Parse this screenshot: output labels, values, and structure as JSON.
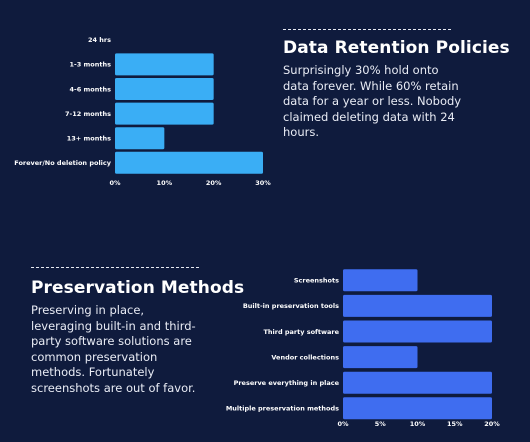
{
  "section1": {
    "heading": "Data Retention Policies",
    "body": "Surprisingly 30% hold onto data forever. While 60% retain data for a year or less. Nobody claimed deleting data with 24 hours."
  },
  "section2": {
    "heading": "Preservation Methods",
    "body": "Preserving in place, leveraging built-in and third-party software solutions are common preservation methods. Fortunately screenshots are out of favor."
  },
  "chart_data": [
    {
      "type": "bar",
      "orientation": "horizontal",
      "categories": [
        "24 hrs",
        "1-3 months",
        "4-6 months",
        "7-12 months",
        "13+ months",
        "Forever/No deletion policy"
      ],
      "values": [
        0,
        20,
        20,
        20,
        10,
        30
      ],
      "xlim": [
        0,
        30
      ],
      "xticks": [
        "0%",
        "10%",
        "20%",
        "30%"
      ],
      "tick_values": [
        0,
        10,
        20,
        30
      ],
      "color": "#3aaef5",
      "grid": false
    },
    {
      "type": "bar",
      "orientation": "horizontal",
      "categories": [
        "Screenshots",
        "Built-in preservation tools",
        "Third party software",
        "Vendor collections",
        "Preserve everything in place",
        "Multiple preservation methods"
      ],
      "values": [
        10,
        20,
        20,
        10,
        20,
        20
      ],
      "xlim": [
        0,
        20
      ],
      "xticks": [
        "0%",
        "5%",
        "10%",
        "15%",
        "20%"
      ],
      "tick_values": [
        0,
        5,
        10,
        15,
        20
      ],
      "color": "#3f6df0",
      "grid": false
    }
  ]
}
